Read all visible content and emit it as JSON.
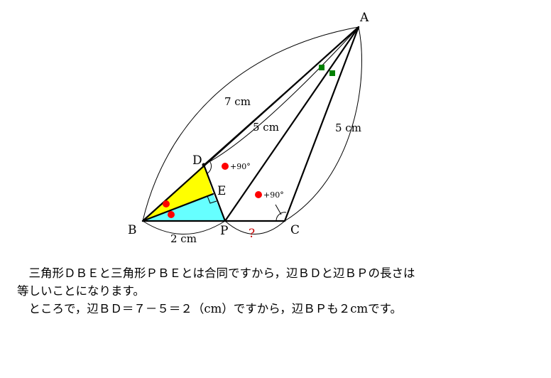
{
  "labels": {
    "A": "A",
    "B": "B",
    "C": "C",
    "D": "D",
    "E": "E",
    "P": "P"
  },
  "lengths": {
    "AB": "7 cm",
    "AD": "5 cm",
    "AC": "5 cm",
    "BP": "2 cm",
    "PC": "?"
  },
  "annotations": {
    "angle_D": "+90°",
    "angle_C": "+90°"
  },
  "explanation": {
    "line1": "　三角形ＤＢＥと三角形ＰＢＥとは合同ですから，辺ＢＤと辺ＢＰの長さは",
    "line2": "等しいことになります。",
    "line3": "　ところで，辺ＢＤ＝７－５＝２（cm）ですから，辺ＢＰも２cmです。"
  },
  "colors": {
    "triangle_DBE": "#ffff00",
    "triangle_PBE": "#66ffff",
    "dot": "#ff0000",
    "square": "#008000",
    "question": "#cc0000"
  }
}
